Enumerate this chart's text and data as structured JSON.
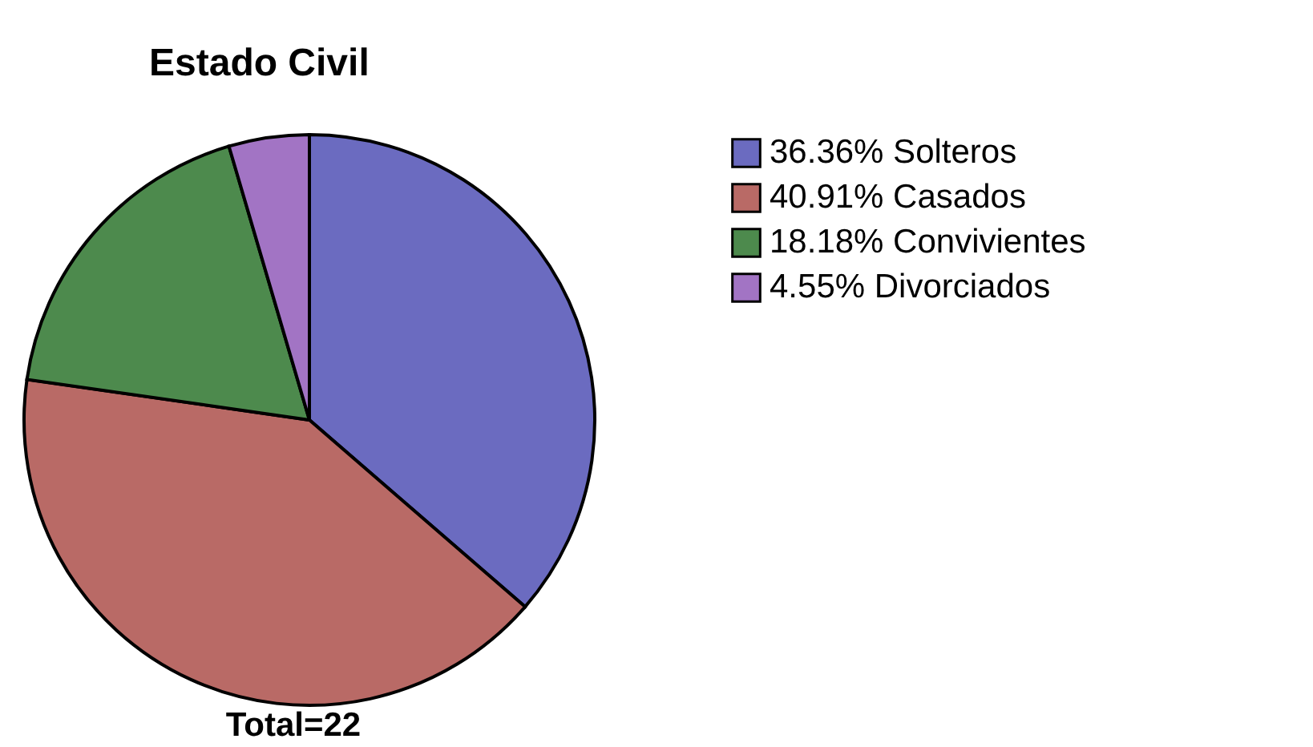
{
  "chart_data": {
    "type": "pie",
    "title": "Estado Civil",
    "categories": [
      "Solteros",
      "Casados",
      "Convivientes",
      "Divorciados"
    ],
    "values": [
      36.36,
      40.91,
      18.18,
      4.55
    ],
    "value_labels": [
      "36.36%",
      "40.91%",
      "18.18%",
      "4.55%"
    ],
    "colors": [
      "#6b6bc0",
      "#b96a66",
      "#4d8a4d",
      "#a274c4"
    ],
    "legend": "right",
    "annotations": [
      "Total=22"
    ]
  }
}
